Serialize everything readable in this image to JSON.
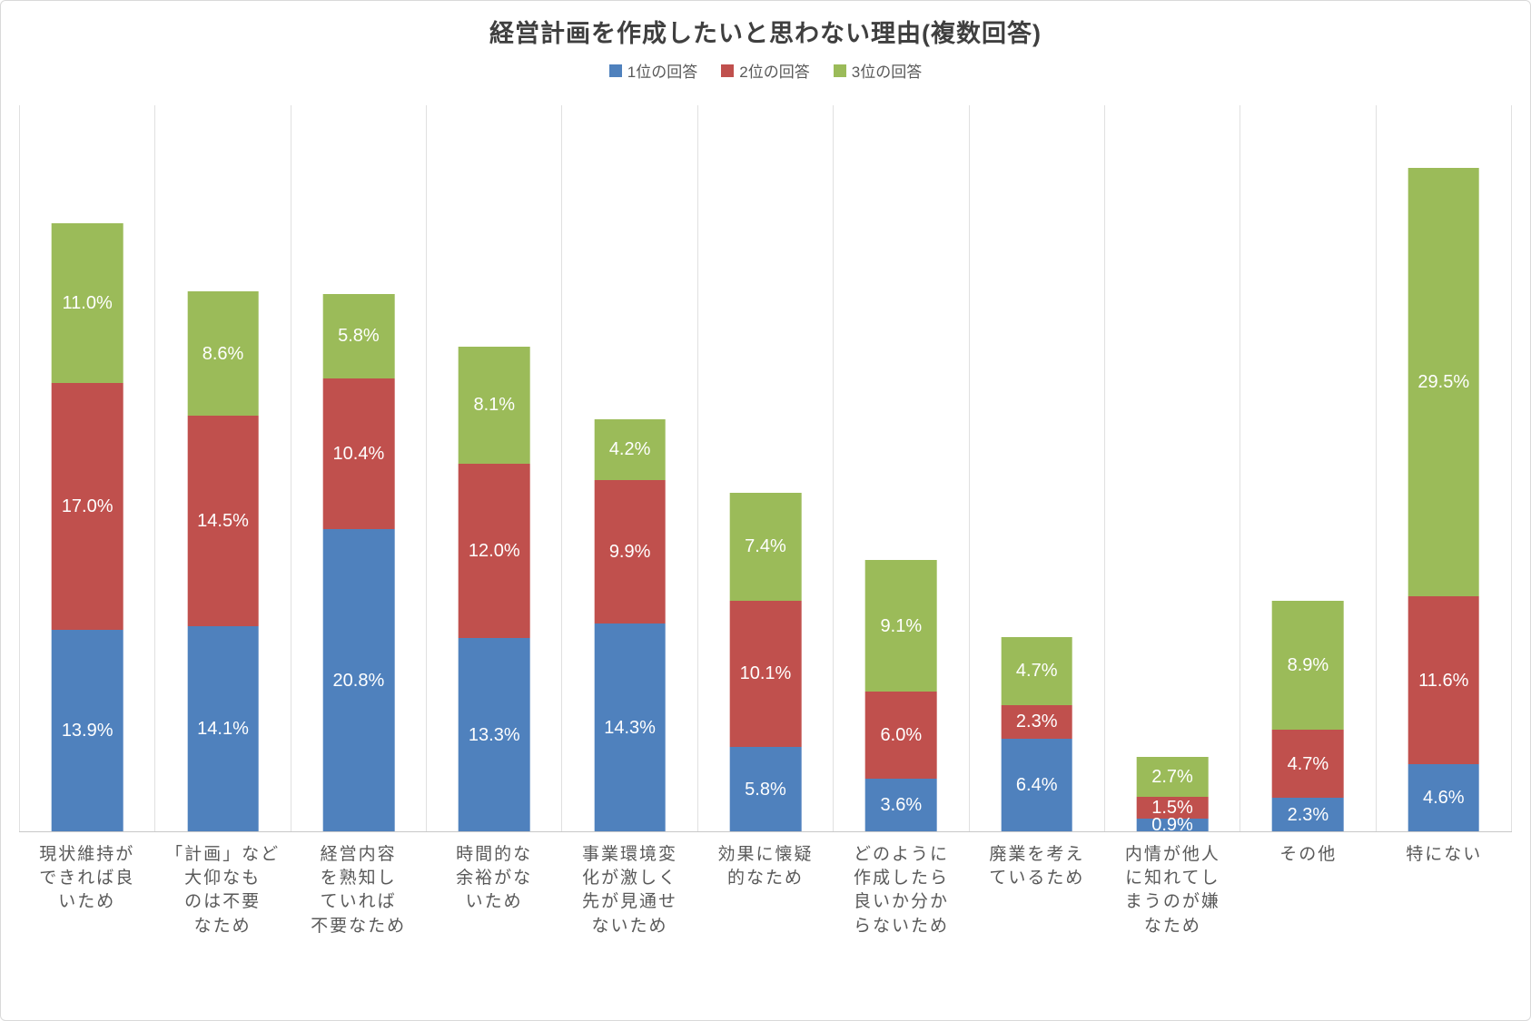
{
  "title": "経営計画を作成したいと思わない理由(複数回答)",
  "legend": [
    {
      "label": "1位の回答",
      "color": "#4F81BD"
    },
    {
      "label": "2位の回答",
      "color": "#C0504D"
    },
    {
      "label": "3位の回答",
      "color": "#9BBB59"
    }
  ],
  "colors": {
    "rank1_blue": "#4F81BD",
    "rank2_red": "#C0504D",
    "rank3_green": "#9BBB59",
    "label_text": "#FFFFFF",
    "axis_text": "#595959",
    "gridline": "#E0E0E0"
  },
  "chart_data": {
    "type": "bar",
    "stacked": true,
    "title": "経営計画を作成したいと思わない理由(複数回答)",
    "unit": "%",
    "ylim": [
      0,
      50
    ],
    "grid": "vertical-category-separators",
    "legend_position": "top",
    "categories": [
      "現状維持ができれば良いため",
      "「計画」など大仰なものは不要なため",
      "経営内容を熟知していれば不要なため",
      "時間的な余裕がないため",
      "事業環境変化が激しく先が見通せないため",
      "効果に懐疑的なため",
      "どのように作成したら良いか分からないため",
      "廃業を考えているため",
      "内情が他人に知れてしまうのが嫌なため",
      "その他",
      "特にない"
    ],
    "category_lines": [
      [
        "現状維持が",
        "できれば良",
        "いため"
      ],
      [
        "「計画」など",
        "大仰なも",
        "のは不要",
        "なため"
      ],
      [
        "経営内容",
        "を熟知し",
        "ていれば",
        "不要なため"
      ],
      [
        "時間的な",
        "余裕がな",
        "いため"
      ],
      [
        "事業環境変",
        "化が激しく",
        "先が見通せ",
        "ないため"
      ],
      [
        "効果に懐疑",
        "的なため"
      ],
      [
        "どのように",
        "作成したら",
        "良いか分か",
        "らないため"
      ],
      [
        "廃業を考え",
        "ているため"
      ],
      [
        "内情が他人",
        "に知れてし",
        "まうのが嫌",
        "なため"
      ],
      [
        "その他"
      ],
      [
        "特にない"
      ]
    ],
    "series": [
      {
        "name": "1位の回答",
        "color": "#4F81BD",
        "values": [
          13.9,
          14.1,
          20.8,
          13.3,
          14.3,
          5.8,
          3.6,
          6.4,
          0.9,
          2.3,
          4.6
        ]
      },
      {
        "name": "2位の回答",
        "color": "#C0504D",
        "values": [
          17.0,
          14.5,
          10.4,
          12.0,
          9.9,
          10.1,
          6.0,
          2.3,
          1.5,
          4.7,
          11.6
        ]
      },
      {
        "name": "3位の回答",
        "color": "#9BBB59",
        "values": [
          11.0,
          8.6,
          5.8,
          8.1,
          4.2,
          7.4,
          9.1,
          4.7,
          2.7,
          8.9,
          29.5
        ]
      }
    ]
  }
}
